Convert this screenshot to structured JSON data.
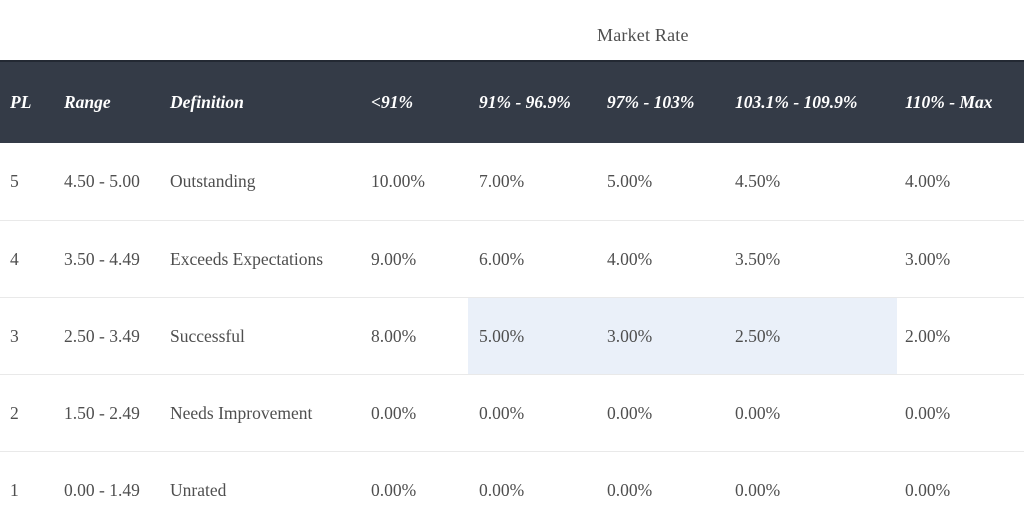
{
  "group_header": "Market Rate",
  "table": {
    "headers": [
      "PL",
      "Range",
      "Definition",
      "<91%",
      "91% - 96.9%",
      "97% - 103%",
      "103.1% - 109.9%",
      "110% - Max"
    ],
    "rows": [
      {
        "pl": "5",
        "range": "4.50 - 5.00",
        "definition": "Outstanding",
        "rates": [
          "10.00%",
          "7.00%",
          "5.00%",
          "4.50%",
          "4.00%"
        ]
      },
      {
        "pl": "4",
        "range": "3.50 - 4.49",
        "definition": "Exceeds Expectations",
        "rates": [
          "9.00%",
          "6.00%",
          "4.00%",
          "3.50%",
          "3.00%"
        ]
      },
      {
        "pl": "3",
        "range": "2.50 - 3.49",
        "definition": "Successful",
        "rates": [
          "8.00%",
          "5.00%",
          "3.00%",
          "2.50%",
          "2.00%"
        ],
        "highlighted_rate_columns": [
          "91% - 96.9%",
          "97% - 103%",
          "103.1% - 109.9%"
        ]
      },
      {
        "pl": "2",
        "range": "1.50 - 2.49",
        "definition": "Needs Improvement",
        "rates": [
          "0.00%",
          "0.00%",
          "0.00%",
          "0.00%",
          "0.00%"
        ]
      },
      {
        "pl": "1",
        "range": "0.00 - 1.49",
        "definition": "Unrated",
        "rates": [
          "0.00%",
          "0.00%",
          "0.00%",
          "0.00%",
          "0.00%"
        ]
      }
    ]
  },
  "colors": {
    "header_background": "#343B47",
    "header_top_border": "#232933",
    "header_text": "#FFFFFF",
    "body_text": "#4F4F4F",
    "row_divider": "#E9E9E9",
    "highlight": "#EAF0F9",
    "title_text": "#4F4F4F"
  }
}
